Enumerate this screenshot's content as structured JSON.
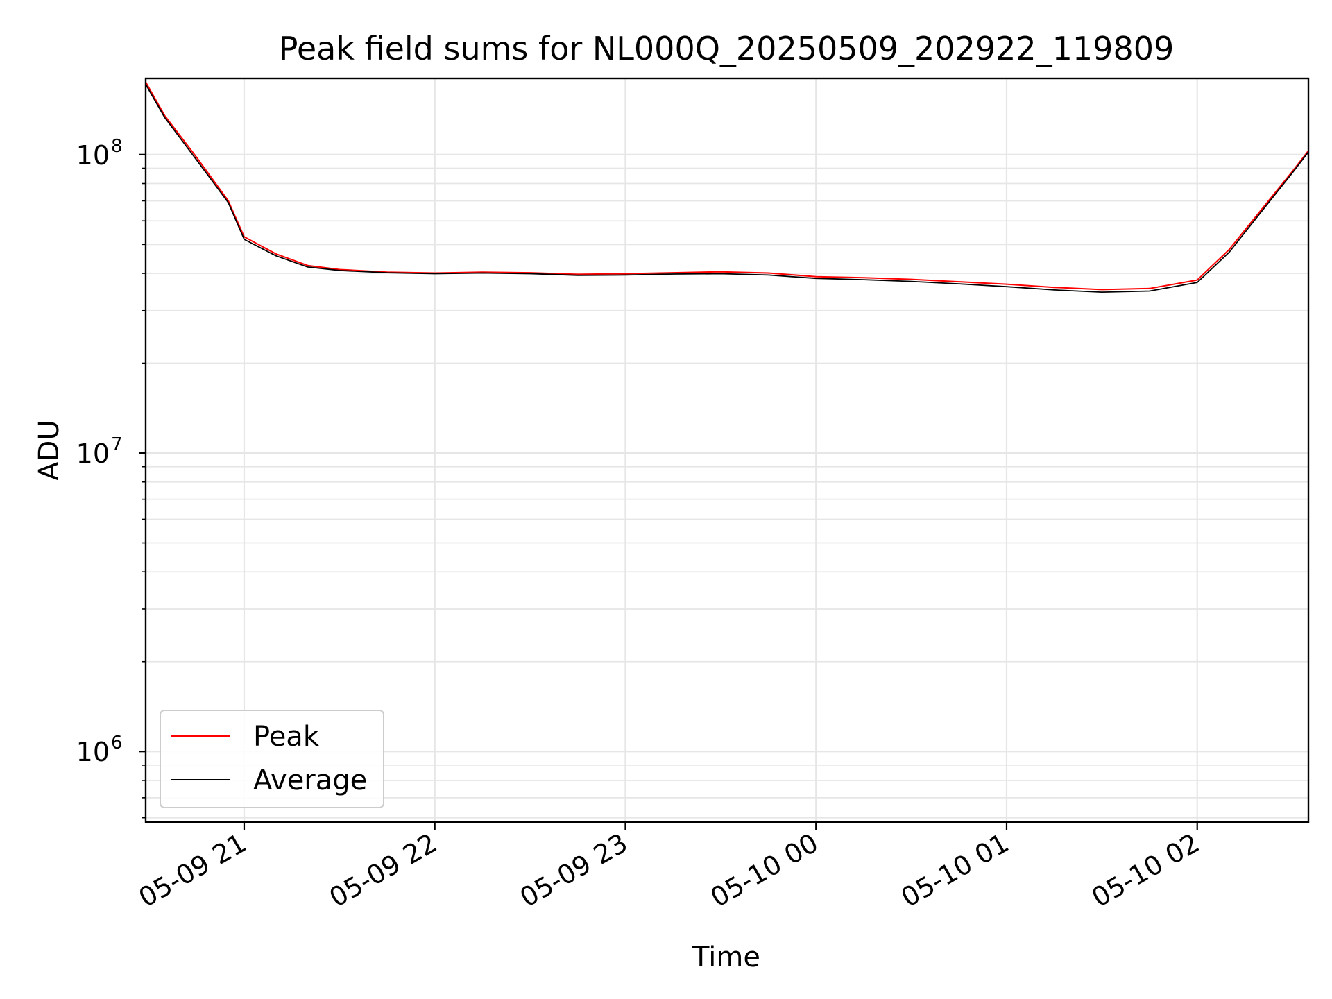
{
  "chart_data": {
    "type": "line",
    "title": "Peak field sums for NL000Q_20250509_202922_119809",
    "xlabel": "Time",
    "ylabel": "ADU",
    "y_scale": "log",
    "ylim": [
      580000,
      180000000
    ],
    "xlim": [
      "2025-05-09 20:29",
      "2025-05-10 02:35"
    ],
    "x_ticks": [
      {
        "value": "2025-05-09 21:00",
        "label": "05-09 21"
      },
      {
        "value": "2025-05-09 22:00",
        "label": "05-09 22"
      },
      {
        "value": "2025-05-09 23:00",
        "label": "05-09 23"
      },
      {
        "value": "2025-05-10 00:00",
        "label": "05-10 00"
      },
      {
        "value": "2025-05-10 01:00",
        "label": "05-10 01"
      },
      {
        "value": "2025-05-10 02:00",
        "label": "05-10 02"
      }
    ],
    "y_ticks": [
      {
        "value": 100000000,
        "base": "10",
        "exp": "8"
      },
      {
        "value": 10000000,
        "base": "10",
        "exp": "7"
      },
      {
        "value": 1000000,
        "base": "10",
        "exp": "6"
      }
    ],
    "grid": true,
    "legend": {
      "position": "lower-left",
      "entries": [
        "Peak",
        "Average"
      ]
    },
    "series": [
      {
        "name": "Peak",
        "color": "#ff0000",
        "points": [
          [
            "2025-05-09 20:29",
            175000000
          ],
          [
            "2025-05-09 20:35",
            135000000
          ],
          [
            "2025-05-09 20:45",
            98000000
          ],
          [
            "2025-05-09 20:55",
            70000000
          ],
          [
            "2025-05-09 21:00",
            53000000
          ],
          [
            "2025-05-09 21:10",
            46500000
          ],
          [
            "2025-05-09 21:20",
            42500000
          ],
          [
            "2025-05-09 21:30",
            41200000
          ],
          [
            "2025-05-09 21:45",
            40400000
          ],
          [
            "2025-05-09 22:00",
            40100000
          ],
          [
            "2025-05-09 22:15",
            40400000
          ],
          [
            "2025-05-09 22:30",
            40200000
          ],
          [
            "2025-05-09 22:45",
            39700000
          ],
          [
            "2025-05-09 23:00",
            39900000
          ],
          [
            "2025-05-09 23:15",
            40200000
          ],
          [
            "2025-05-09 23:30",
            40500000
          ],
          [
            "2025-05-09 23:45",
            40100000
          ],
          [
            "2025-05-10 00:00",
            39000000
          ],
          [
            "2025-05-10 00:15",
            38700000
          ],
          [
            "2025-05-10 00:30",
            38200000
          ],
          [
            "2025-05-10 00:45",
            37500000
          ],
          [
            "2025-05-10 01:00",
            36800000
          ],
          [
            "2025-05-10 01:15",
            35900000
          ],
          [
            "2025-05-10 01:30",
            35300000
          ],
          [
            "2025-05-10 01:45",
            35600000
          ],
          [
            "2025-05-10 02:00",
            38000000
          ],
          [
            "2025-05-10 02:10",
            48000000
          ],
          [
            "2025-05-10 02:20",
            65000000
          ],
          [
            "2025-05-10 02:30",
            88000000
          ],
          [
            "2025-05-10 02:35",
            103000000
          ]
        ]
      },
      {
        "name": "Average",
        "color": "#000000",
        "points": [
          [
            "2025-05-09 20:29",
            172000000
          ],
          [
            "2025-05-09 20:35",
            133000000
          ],
          [
            "2025-05-09 20:45",
            96000000
          ],
          [
            "2025-05-09 20:55",
            69000000
          ],
          [
            "2025-05-09 21:00",
            52000000
          ],
          [
            "2025-05-09 21:10",
            45800000
          ],
          [
            "2025-05-09 21:20",
            42000000
          ],
          [
            "2025-05-09 21:30",
            40900000
          ],
          [
            "2025-05-09 21:45",
            40200000
          ],
          [
            "2025-05-09 22:00",
            39900000
          ],
          [
            "2025-05-09 22:15",
            40100000
          ],
          [
            "2025-05-09 22:30",
            39900000
          ],
          [
            "2025-05-09 22:45",
            39400000
          ],
          [
            "2025-05-09 23:00",
            39500000
          ],
          [
            "2025-05-09 23:15",
            39800000
          ],
          [
            "2025-05-09 23:30",
            39900000
          ],
          [
            "2025-05-09 23:45",
            39500000
          ],
          [
            "2025-05-10 00:00",
            38500000
          ],
          [
            "2025-05-10 00:15",
            38100000
          ],
          [
            "2025-05-10 00:30",
            37600000
          ],
          [
            "2025-05-10 00:45",
            36900000
          ],
          [
            "2025-05-10 01:00",
            36100000
          ],
          [
            "2025-05-10 01:15",
            35200000
          ],
          [
            "2025-05-10 01:30",
            34600000
          ],
          [
            "2025-05-10 01:45",
            34900000
          ],
          [
            "2025-05-10 02:00",
            37300000
          ],
          [
            "2025-05-10 02:10",
            47000000
          ],
          [
            "2025-05-10 02:20",
            64000000
          ],
          [
            "2025-05-10 02:30",
            87000000
          ],
          [
            "2025-05-10 02:35",
            102000000
          ]
        ]
      }
    ]
  }
}
